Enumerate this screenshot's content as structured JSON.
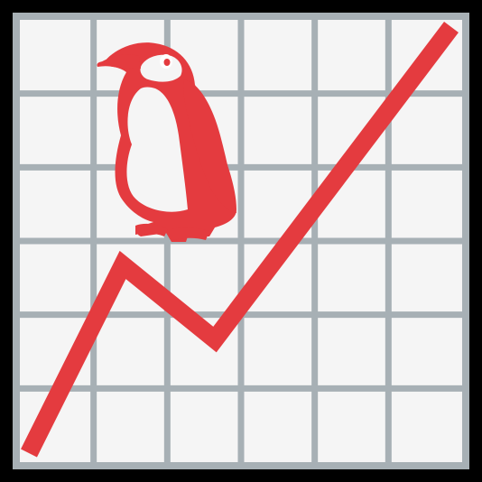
{
  "icon": {
    "name": "chart-increasing-with-penguin-icon",
    "colors": {
      "background": "#000000",
      "frame_fill": "#f5f5f5",
      "grid_stroke": "#a7b0b5",
      "accent_red": "#e43b3f",
      "penguin_eye": "#ffffff"
    }
  },
  "chart_data": {
    "type": "line",
    "x": [
      0,
      1,
      2,
      3
    ],
    "series": [
      {
        "values": [
          0,
          2.65,
          1.6,
          6
        ]
      }
    ],
    "grid": true,
    "title": "",
    "xlabel": "",
    "ylabel": ""
  }
}
